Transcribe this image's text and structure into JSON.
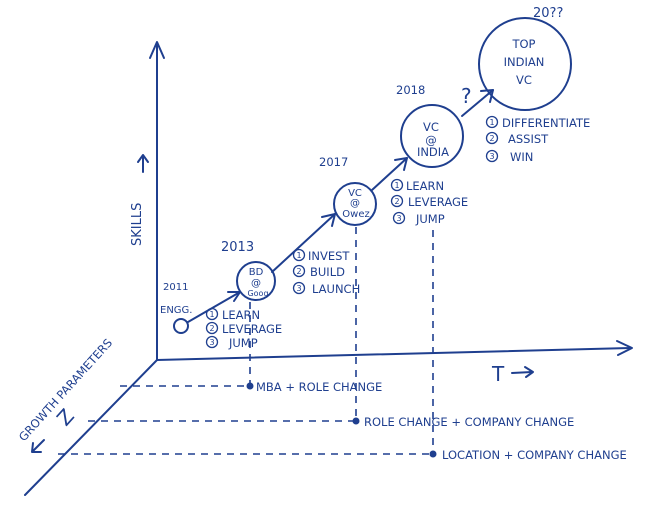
{
  "axes": {
    "vertical_label": "SKILLS",
    "horizontal_label": "T",
    "depth_label": "GROWTH PARAMETERS",
    "depth_letter": "Z"
  },
  "stages": [
    {
      "year": "2011",
      "node": "ENGG.",
      "points": [
        "LEARN",
        "LEVERAGE",
        "JUMP"
      ]
    },
    {
      "year": "2013",
      "node_lines": [
        "BD",
        "@",
        "Goog"
      ],
      "points": [
        "INVEST",
        "BUILD",
        "LAUNCH"
      ]
    },
    {
      "year": "2017",
      "node_lines": [
        "VC",
        "@",
        "Owez"
      ],
      "points": [
        "LEARN",
        "LEVERAGE",
        "JUMP"
      ]
    },
    {
      "year": "2018",
      "node_lines": [
        "VC",
        "@",
        "INDIA"
      ],
      "points": [
        "DIFFERENTIATE",
        "ASSIST",
        "WIN"
      ]
    },
    {
      "year": "20??",
      "node_lines": [
        "TOP",
        "INDIAN",
        "VC"
      ]
    }
  ],
  "transitions": [
    "MBA + ROLE CHANGE",
    "ROLE CHANGE + COMPANY CHANGE",
    "LOCATION + COMPANY CHANGE"
  ],
  "question_mark": "?",
  "number_marks": [
    "1",
    "2",
    "3"
  ],
  "ink_color": "#1f3f8f"
}
